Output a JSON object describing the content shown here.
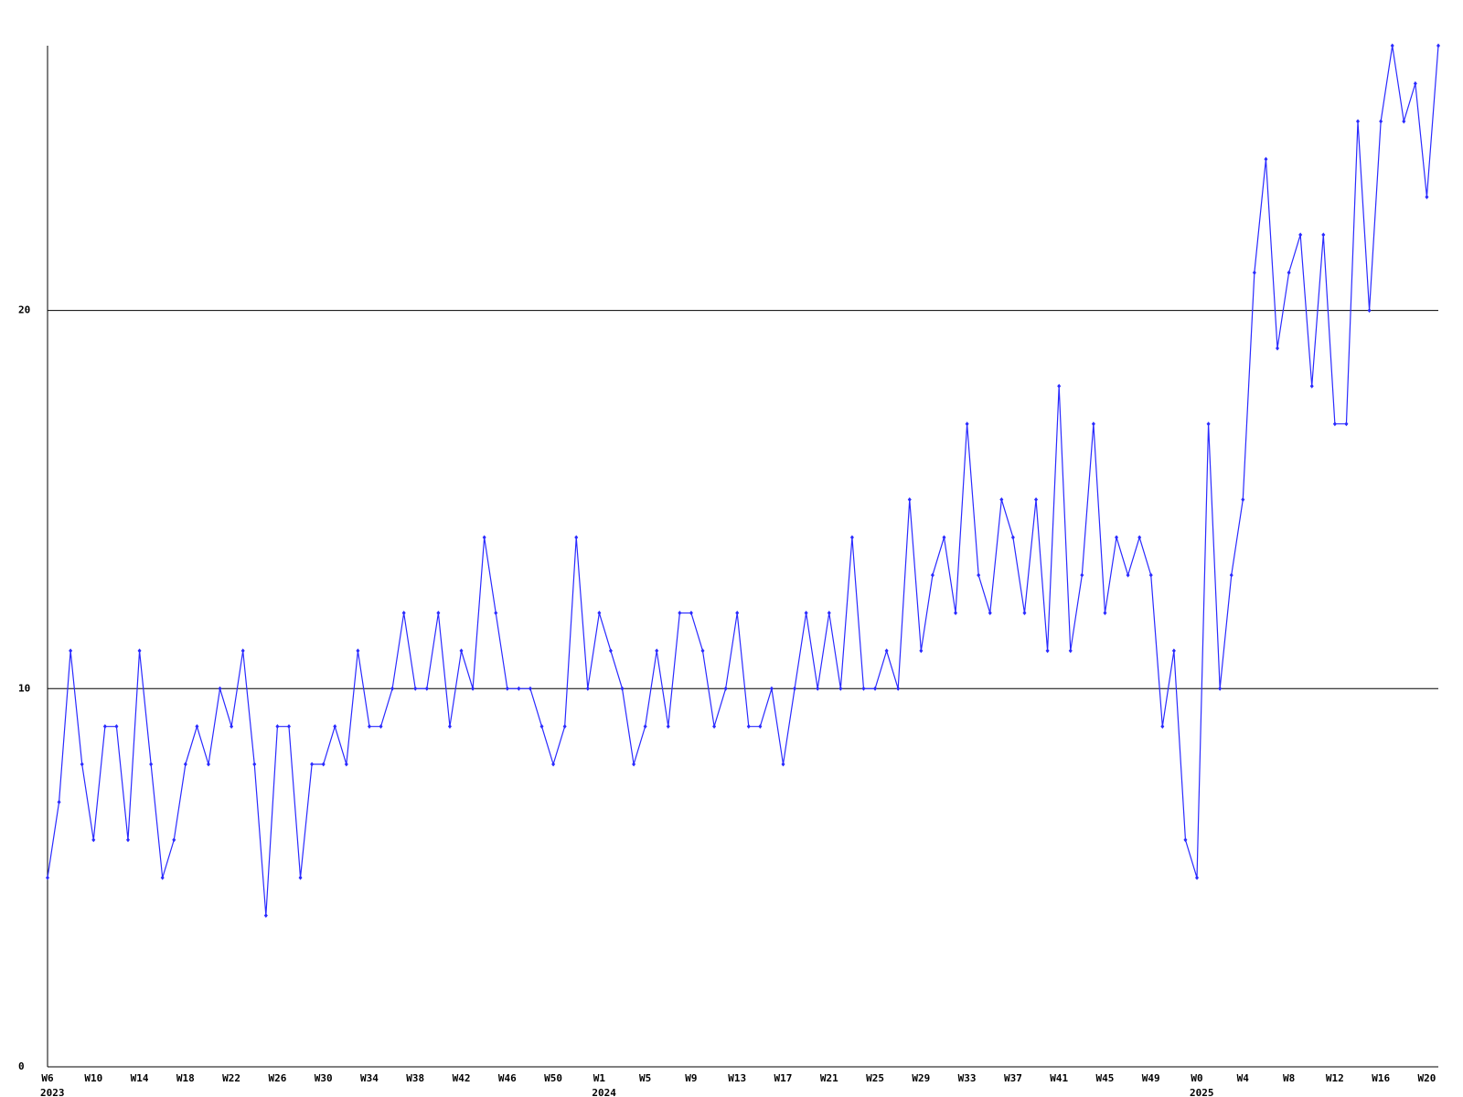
{
  "chart_data": {
    "type": "line",
    "categories": [
      "W6",
      null,
      null,
      null,
      "W10",
      null,
      null,
      null,
      "W14",
      null,
      null,
      null,
      "W18",
      null,
      null,
      null,
      "W22",
      null,
      null,
      null,
      "W26",
      null,
      null,
      null,
      "W30",
      null,
      null,
      null,
      "W34",
      null,
      null,
      null,
      "W38",
      null,
      null,
      null,
      "W42",
      null,
      null,
      null,
      "W46",
      null,
      null,
      null,
      "W50",
      null,
      null,
      null,
      "W1",
      null,
      null,
      null,
      "W5",
      null,
      null,
      null,
      "W9",
      null,
      null,
      null,
      "W13",
      null,
      null,
      null,
      "W17",
      null,
      null,
      null,
      "W21",
      null,
      null,
      null,
      "W25",
      null,
      null,
      null,
      "W29",
      null,
      null,
      null,
      "W33",
      null,
      null,
      null,
      "W37",
      null,
      null,
      null,
      "W41",
      null,
      null,
      null,
      "W45",
      null,
      null,
      null,
      "W49",
      null,
      null,
      null,
      "W0",
      null,
      null,
      null,
      "W4",
      null,
      null,
      null,
      "W8",
      null,
      null,
      null,
      "W12",
      null,
      null,
      null,
      "W16",
      null,
      null,
      null,
      "W20",
      null
    ],
    "year_labels": [
      "2023",
      "2024",
      "2025"
    ],
    "series": [
      {
        "color": "#2a2aff",
        "values": [
          5,
          7,
          11,
          8,
          6,
          9,
          9,
          6,
          11,
          8,
          5,
          6,
          8,
          9,
          8,
          10,
          9,
          11,
          8,
          4,
          9,
          9,
          5,
          8,
          8,
          9,
          8,
          11,
          9,
          9,
          10,
          12,
          10,
          10,
          12,
          9,
          11,
          10,
          14,
          12,
          10,
          10,
          10,
          9,
          8,
          9,
          14,
          10,
          12,
          11,
          10,
          8,
          9,
          11,
          9,
          12,
          12,
          11,
          9,
          10,
          12,
          9,
          9,
          10,
          8,
          10,
          12,
          10,
          12,
          10,
          14,
          10,
          10,
          11,
          10,
          15,
          11,
          13,
          14,
          12,
          17,
          13,
          12,
          15,
          14,
          12,
          15,
          11,
          18,
          11,
          13,
          17,
          12,
          14,
          13,
          14,
          13,
          9,
          11,
          6,
          5,
          17,
          10,
          13,
          15,
          21,
          24,
          19,
          21,
          22,
          18,
          22,
          17,
          17,
          25,
          20,
          25,
          27,
          25,
          26,
          23,
          27
        ]
      }
    ],
    "ylim": [
      0,
      27
    ],
    "yticks": [
      0,
      10,
      20
    ],
    "grid": true
  }
}
